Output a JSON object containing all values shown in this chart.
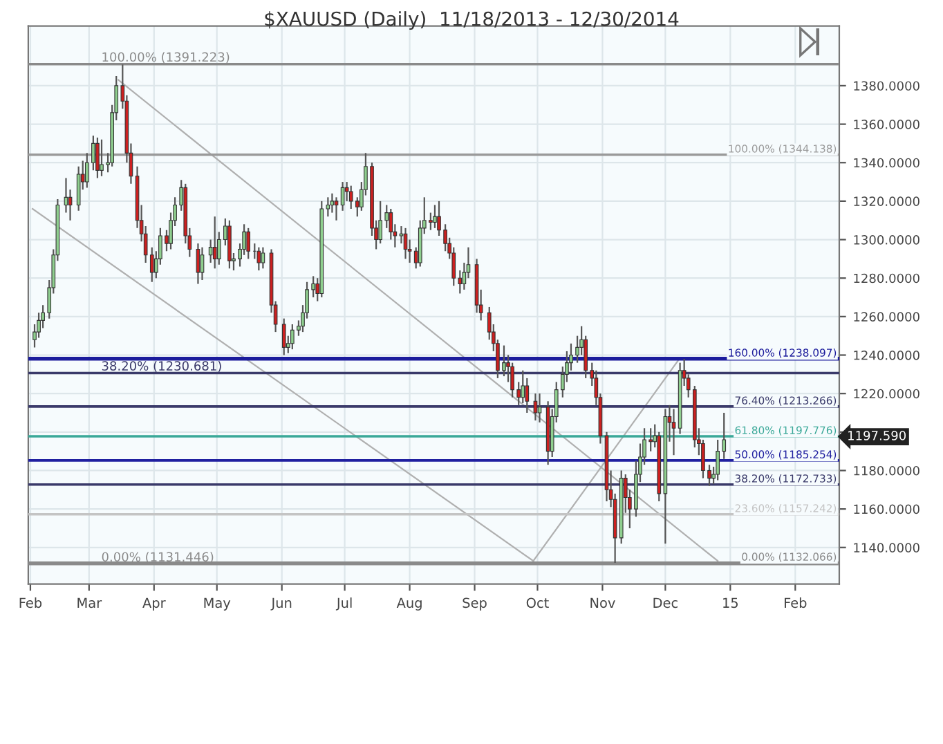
{
  "chart_data": {
    "type": "candlestick",
    "title": "$XAUUSD (Daily)  11/18/2013 - 12/30/2014",
    "x": [
      "2014-02-03",
      "2014-02-05",
      "2014-02-07",
      "2014-02-10",
      "2014-02-12",
      "2014-02-14",
      "2014-02-18",
      "2014-02-20",
      "2014-02-24",
      "2014-02-26",
      "2014-02-28",
      "2014-03-03",
      "2014-03-05",
      "2014-03-07",
      "2014-03-10",
      "2014-03-12",
      "2014-03-14",
      "2014-03-17",
      "2014-03-19",
      "2014-03-21",
      "2014-03-24",
      "2014-03-26",
      "2014-03-28",
      "2014-03-31",
      "2014-04-02",
      "2014-04-04",
      "2014-04-07",
      "2014-04-09",
      "2014-04-11",
      "2014-04-14",
      "2014-04-16",
      "2014-04-18",
      "2014-04-22",
      "2014-04-24",
      "2014-04-28",
      "2014-04-30",
      "2014-05-02",
      "2014-05-05",
      "2014-05-07",
      "2014-05-09",
      "2014-05-12",
      "2014-05-14",
      "2014-05-16",
      "2014-05-19",
      "2014-05-21",
      "2014-05-23",
      "2014-05-27",
      "2014-05-29",
      "2014-06-02",
      "2014-06-04",
      "2014-06-06",
      "2014-06-09",
      "2014-06-11",
      "2014-06-13",
      "2014-06-16",
      "2014-06-18",
      "2014-06-20",
      "2014-06-23",
      "2014-06-25",
      "2014-06-27",
      "2014-06-30",
      "2014-07-02",
      "2014-07-04",
      "2014-07-07",
      "2014-07-09",
      "2014-07-11",
      "2014-07-14",
      "2014-07-16",
      "2014-07-18",
      "2014-07-21",
      "2014-07-23",
      "2014-07-25",
      "2014-07-28",
      "2014-07-30",
      "2014-08-01",
      "2014-08-04",
      "2014-08-06",
      "2014-08-08",
      "2014-08-11",
      "2014-08-13",
      "2014-08-15",
      "2014-08-18",
      "2014-08-20",
      "2014-08-22",
      "2014-08-25",
      "2014-08-27",
      "2014-08-29",
      "2014-09-02",
      "2014-09-04",
      "2014-09-08",
      "2014-09-10",
      "2014-09-12",
      "2014-09-15",
      "2014-09-17",
      "2014-09-19",
      "2014-09-22",
      "2014-09-24",
      "2014-09-26",
      "2014-09-30",
      "2014-10-02",
      "2014-10-06",
      "2014-10-08",
      "2014-10-10",
      "2014-10-13",
      "2014-10-15",
      "2014-10-17",
      "2014-10-20",
      "2014-10-22",
      "2014-10-24",
      "2014-10-27",
      "2014-10-29",
      "2014-10-31",
      "2014-11-03",
      "2014-11-05",
      "2014-11-07",
      "2014-11-10",
      "2014-11-12",
      "2014-11-14",
      "2014-11-17",
      "2014-11-19",
      "2014-11-21",
      "2014-11-24",
      "2014-11-26",
      "2014-11-28",
      "2014-12-01",
      "2014-12-03",
      "2014-12-05",
      "2014-12-08",
      "2014-12-10",
      "2014-12-12",
      "2014-12-15",
      "2014-12-17",
      "2014-12-19",
      "2014-12-22",
      "2014-12-24",
      "2014-12-26",
      "2014-12-29"
    ],
    "ohlc": [
      [
        1248,
        1256,
        1244,
        1252
      ],
      [
        1252,
        1262,
        1249,
        1258
      ],
      [
        1258,
        1266,
        1254,
        1262
      ],
      [
        1262,
        1279,
        1259,
        1275
      ],
      [
        1275,
        1295,
        1272,
        1292
      ],
      [
        1292,
        1321,
        1289,
        1318
      ],
      [
        1318,
        1332,
        1314,
        1322
      ],
      [
        1322,
        1326,
        1310,
        1318
      ],
      [
        1318,
        1338,
        1315,
        1334
      ],
      [
        1334,
        1341,
        1326,
        1330
      ],
      [
        1330,
        1345,
        1327,
        1340
      ],
      [
        1340,
        1354,
        1336,
        1350
      ],
      [
        1350,
        1353,
        1332,
        1336
      ],
      [
        1336,
        1352,
        1333,
        1339
      ],
      [
        1339,
        1345,
        1335,
        1340
      ],
      [
        1340,
        1370,
        1338,
        1366
      ],
      [
        1366,
        1385,
        1362,
        1380
      ],
      [
        1380,
        1391,
        1368,
        1372
      ],
      [
        1372,
        1375,
        1340,
        1345
      ],
      [
        1345,
        1350,
        1329,
        1333
      ],
      [
        1333,
        1338,
        1306,
        1310
      ],
      [
        1310,
        1318,
        1299,
        1303
      ],
      [
        1303,
        1307,
        1288,
        1292
      ],
      [
        1292,
        1296,
        1278,
        1283
      ],
      [
        1283,
        1294,
        1280,
        1290
      ],
      [
        1290,
        1306,
        1287,
        1302
      ],
      [
        1302,
        1305,
        1294,
        1298
      ],
      [
        1298,
        1314,
        1295,
        1310
      ],
      [
        1310,
        1322,
        1307,
        1318
      ],
      [
        1318,
        1331,
        1315,
        1327
      ],
      [
        1327,
        1329,
        1298,
        1302
      ],
      [
        1302,
        1306,
        1291,
        1295
      ],
      [
        1295,
        1298,
        1277,
        1283
      ],
      [
        1283,
        1296,
        1279,
        1292
      ],
      [
        1292,
        1300,
        1288,
        1296
      ],
      [
        1296,
        1312,
        1285,
        1290
      ],
      [
        1290,
        1304,
        1287,
        1300
      ],
      [
        1300,
        1311,
        1297,
        1307
      ],
      [
        1307,
        1310,
        1285,
        1289
      ],
      [
        1289,
        1293,
        1284,
        1290
      ],
      [
        1290,
        1298,
        1286,
        1295
      ],
      [
        1295,
        1308,
        1292,
        1304
      ],
      [
        1304,
        1306,
        1290,
        1294
      ],
      [
        1294,
        1298,
        1290,
        1294
      ],
      [
        1294,
        1296,
        1284,
        1288
      ],
      [
        1288,
        1296,
        1285,
        1293
      ],
      [
        1293,
        1295,
        1262,
        1266
      ],
      [
        1266,
        1268,
        1252,
        1256
      ],
      [
        1256,
        1259,
        1240,
        1244
      ],
      [
        1244,
        1250,
        1241,
        1246
      ],
      [
        1246,
        1256,
        1243,
        1253
      ],
      [
        1253,
        1258,
        1250,
        1255
      ],
      [
        1255,
        1266,
        1252,
        1262
      ],
      [
        1262,
        1278,
        1259,
        1274
      ],
      [
        1274,
        1281,
        1270,
        1277
      ],
      [
        1277,
        1280,
        1268,
        1272
      ],
      [
        1272,
        1320,
        1270,
        1316
      ],
      [
        1316,
        1322,
        1312,
        1318
      ],
      [
        1318,
        1324,
        1314,
        1320
      ],
      [
        1320,
        1322,
        1310,
        1318
      ],
      [
        1318,
        1330,
        1315,
        1327
      ],
      [
        1327,
        1330,
        1320,
        1325
      ],
      [
        1325,
        1328,
        1316,
        1320
      ],
      [
        1320,
        1322,
        1312,
        1317
      ],
      [
        1317,
        1330,
        1315,
        1326
      ],
      [
        1326,
        1345,
        1323,
        1338
      ],
      [
        1338,
        1340,
        1302,
        1306
      ],
      [
        1306,
        1310,
        1295,
        1300
      ],
      [
        1300,
        1320,
        1298,
        1310
      ],
      [
        1310,
        1318,
        1306,
        1314
      ],
      [
        1314,
        1316,
        1300,
        1304
      ],
      [
        1304,
        1308,
        1296,
        1302
      ],
      [
        1302,
        1307,
        1298,
        1303
      ],
      [
        1303,
        1306,
        1290,
        1295
      ],
      [
        1295,
        1300,
        1288,
        1294
      ],
      [
        1294,
        1296,
        1285,
        1288
      ],
      [
        1288,
        1310,
        1286,
        1306
      ],
      [
        1306,
        1322,
        1303,
        1310
      ],
      [
        1310,
        1314,
        1305,
        1309
      ],
      [
        1309,
        1318,
        1306,
        1312
      ],
      [
        1312,
        1320,
        1302,
        1305
      ],
      [
        1305,
        1308,
        1294,
        1298
      ],
      [
        1298,
        1301,
        1290,
        1293
      ],
      [
        1293,
        1296,
        1276,
        1280
      ],
      [
        1280,
        1284,
        1272,
        1277
      ],
      [
        1277,
        1288,
        1274,
        1283
      ],
      [
        1283,
        1296,
        1280,
        1287
      ],
      [
        1287,
        1290,
        1262,
        1266
      ],
      [
        1266,
        1274,
        1258,
        1262
      ],
      [
        1262,
        1265,
        1248,
        1252
      ],
      [
        1252,
        1256,
        1242,
        1246
      ],
      [
        1246,
        1248,
        1228,
        1232
      ],
      [
        1232,
        1245,
        1229,
        1236
      ],
      [
        1236,
        1240,
        1226,
        1234
      ],
      [
        1234,
        1236,
        1218,
        1222
      ],
      [
        1222,
        1226,
        1214,
        1218
      ],
      [
        1218,
        1232,
        1215,
        1224
      ],
      [
        1224,
        1228,
        1210,
        1216
      ],
      [
        1216,
        1220,
        1206,
        1210
      ],
      [
        1210,
        1220,
        1205,
        1213
      ],
      [
        1213,
        1216,
        1183,
        1190
      ],
      [
        1190,
        1212,
        1187,
        1208
      ],
      [
        1208,
        1226,
        1205,
        1222
      ],
      [
        1222,
        1234,
        1218,
        1230
      ],
      [
        1230,
        1242,
        1226,
        1236
      ],
      [
        1236,
        1246,
        1232,
        1240
      ],
      [
        1240,
        1250,
        1236,
        1244
      ],
      [
        1244,
        1255,
        1240,
        1248
      ],
      [
        1248,
        1250,
        1228,
        1232
      ],
      [
        1232,
        1236,
        1224,
        1228
      ],
      [
        1228,
        1232,
        1214,
        1218
      ],
      [
        1218,
        1220,
        1194,
        1198
      ],
      [
        1198,
        1200,
        1164,
        1170
      ],
      [
        1170,
        1180,
        1161,
        1165
      ],
      [
        1165,
        1168,
        1132,
        1145
      ],
      [
        1145,
        1180,
        1142,
        1176
      ],
      [
        1176,
        1178,
        1158,
        1166
      ],
      [
        1166,
        1170,
        1150,
        1160
      ],
      [
        1160,
        1185,
        1156,
        1178
      ],
      [
        1178,
        1194,
        1174,
        1187
      ],
      [
        1187,
        1202,
        1183,
        1196
      ],
      [
        1196,
        1202,
        1190,
        1195
      ],
      [
        1195,
        1204,
        1192,
        1198
      ],
      [
        1198,
        1200,
        1164,
        1168
      ],
      [
        1168,
        1212,
        1142,
        1208
      ],
      [
        1208,
        1214,
        1195,
        1205
      ],
      [
        1205,
        1212,
        1188,
        1202
      ],
      [
        1202,
        1236,
        1199,
        1232
      ],
      [
        1232,
        1238,
        1224,
        1228
      ],
      [
        1228,
        1230,
        1218,
        1222
      ],
      [
        1222,
        1224,
        1192,
        1196
      ],
      [
        1196,
        1202,
        1188,
        1194
      ],
      [
        1194,
        1196,
        1176,
        1180
      ],
      [
        1180,
        1183,
        1172,
        1176
      ],
      [
        1176,
        1182,
        1173,
        1178
      ],
      [
        1178,
        1196,
        1175,
        1190
      ],
      [
        1190,
        1210,
        1186,
        1196
      ]
    ],
    "series": [
      {
        "type": "line",
        "x": [
          "2014-02-02",
          "2014-09-29"
        ],
        "values": [
          1316,
          1133
        ],
        "color": "#b0b0b0"
      },
      {
        "type": "line",
        "x": [
          "2014-03-15",
          "2014-12-26"
        ],
        "values": [
          1383,
          1133
        ],
        "color": "#b0b0b0"
      },
      {
        "type": "line",
        "x": [
          "2014-09-29",
          "2014-12-07"
        ],
        "values": [
          1133,
          1237
        ],
        "color": "#b0b0b0"
      }
    ],
    "ref_lines": [
      {
        "axis": "y",
        "value": 1391.223,
        "label": "100.00% (1391.223)",
        "color": "#8a8a8a"
      },
      {
        "axis": "y",
        "value": 1230.681,
        "label": "38.20% (1230.681)",
        "color": "#3a3a6a"
      },
      {
        "axis": "y",
        "value": 1131.446,
        "label": "0.00% (1131.446)",
        "color": "#8a8a8a"
      },
      {
        "axis": "y",
        "value": 1344.138,
        "label": "100.00% (1344.138)",
        "color": "#9a9a9a"
      },
      {
        "axis": "y",
        "value": 1238.097,
        "label": "160.00% (1238.097)",
        "color": "#1c1c9c"
      },
      {
        "axis": "y",
        "value": 1213.266,
        "label": "76.40% (1213.266)",
        "color": "#3a3a6a"
      },
      {
        "axis": "y",
        "value": 1197.776,
        "label": "61.80% (1197.776)",
        "color": "#3aa898"
      },
      {
        "axis": "y",
        "value": 1185.254,
        "label": "50.00% (1185.254)",
        "color": "#2020a0"
      },
      {
        "axis": "y",
        "value": 1172.733,
        "label": "38.20% (1172.733)",
        "color": "#3a3a6a"
      },
      {
        "axis": "y",
        "value": 1157.242,
        "label": "23.60% (1157.242)",
        "color": "#c4c4c4"
      },
      {
        "axis": "y",
        "value": 1132.066,
        "label": "0.00% (1132.066)",
        "color": "#8a8a8a"
      }
    ],
    "annotations": [
      {
        "text": "1197.590",
        "x": "2015-02-22",
        "y": 1197.59
      }
    ],
    "xlim": [
      "2014-01-31",
      "2015-02-22"
    ],
    "xticks": [
      {
        "value": "2014-02-01",
        "label": "Feb"
      },
      {
        "value": "2014-03-01",
        "label": "Mar"
      },
      {
        "value": "2014-04-01",
        "label": "Apr"
      },
      {
        "value": "2014-05-01",
        "label": "May"
      },
      {
        "value": "2014-06-01",
        "label": "Jun"
      },
      {
        "value": "2014-07-01",
        "label": "Jul"
      },
      {
        "value": "2014-08-01",
        "label": "Aug"
      },
      {
        "value": "2014-09-01",
        "label": "Sep"
      },
      {
        "value": "2014-10-01",
        "label": "Oct"
      },
      {
        "value": "2014-11-01",
        "label": "Nov"
      },
      {
        "value": "2014-12-01",
        "label": "Dec"
      },
      {
        "value": "2015-01-01",
        "label": "15"
      },
      {
        "value": "2015-02-01",
        "label": "Feb"
      }
    ],
    "ylim": [
      1121,
      1411
    ],
    "yticks": [
      {
        "value": 1140,
        "label": "1140.0000"
      },
      {
        "value": 1160,
        "label": "1160.0000"
      },
      {
        "value": 1180,
        "label": "1180.0000"
      },
      {
        "value": 1200,
        "label": null
      },
      {
        "value": 1220,
        "label": "1220.0000"
      },
      {
        "value": 1240,
        "label": "1240.0000"
      },
      {
        "value": 1260,
        "label": "1260.0000"
      },
      {
        "value": 1280,
        "label": "1280.0000"
      },
      {
        "value": 1300,
        "label": "1300.0000"
      },
      {
        "value": 1320,
        "label": "1320.0000"
      },
      {
        "value": 1340,
        "label": "1340.0000"
      },
      {
        "value": 1360,
        "label": "1360.0000"
      },
      {
        "value": 1380,
        "label": "1380.0000"
      }
    ],
    "grid": true
  }
}
